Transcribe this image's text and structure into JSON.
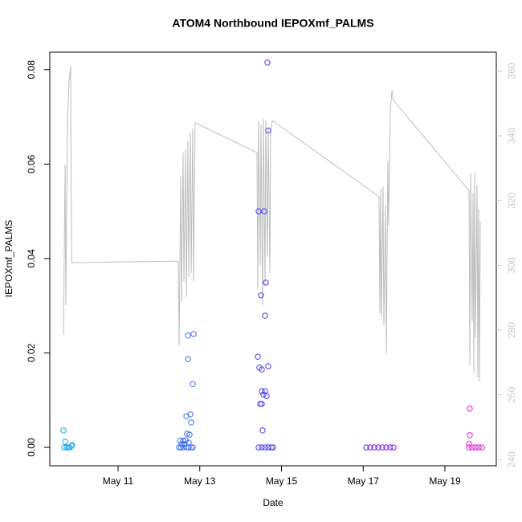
{
  "chart_data": {
    "type": "scatter",
    "title": "ATOM4 Northbound IEPOXmf_PALMS",
    "x_label": "Date",
    "y_label": "IEPOXmf_PALMS",
    "xlim": [
      9.329,
      20.258
    ],
    "xticks": [
      {
        "value": 11,
        "label": "May 11"
      },
      {
        "value": 13,
        "label": "May 13"
      },
      {
        "value": 15,
        "label": "May 15"
      },
      {
        "value": 17,
        "label": "May 17"
      },
      {
        "value": 19,
        "label": "May 19"
      }
    ],
    "ylim": [
      -0.0039,
      0.0837
    ],
    "yticks": [
      {
        "value": 0,
        "label": "0.00"
      },
      {
        "value": 0.02,
        "label": "0.02"
      },
      {
        "value": 0.04,
        "label": "0.04"
      },
      {
        "value": 0.06,
        "label": "0.06"
      },
      {
        "value": 0.08,
        "label": "0.08"
      }
    ],
    "y2lim": [
      238.1,
      365.8
    ],
    "y2ticks": [
      240,
      260,
      280,
      300,
      320,
      340,
      360
    ],
    "y2tick_color": "#c8c8c8",
    "series": [
      {
        "type": "line",
        "axis": "y2",
        "color": "#bebebe",
        "x": [
          9.664,
          9.704,
          9.722,
          9.762,
          9.802,
          9.84,
          9.86,
          12.474,
          12.494,
          12.534,
          12.554,
          12.592,
          12.612,
          12.652,
          12.672,
          12.71,
          12.73,
          12.77,
          12.79,
          12.828,
          12.848,
          12.886,
          14.4,
          14.42,
          14.44,
          14.48,
          14.498,
          14.538,
          14.558,
          14.598,
          14.616,
          14.656,
          14.676,
          14.716,
          14.734,
          14.774,
          17.388,
          17.408,
          17.428,
          17.448,
          17.486,
          17.506,
          17.546,
          17.566,
          17.604,
          17.624,
          17.664,
          17.704,
          17.742,
          19.59,
          19.61,
          19.63,
          19.668,
          19.688,
          19.708,
          19.728,
          19.748,
          19.786,
          19.806,
          19.826,
          19.846,
          19.866
        ],
        "values": [
          278.5,
          331.1,
          287.7,
          344.7,
          357.1,
          361.6,
          300.8,
          301.3,
          275.3,
          327.4,
          288.9,
          334.8,
          295.1,
          336.0,
          290.2,
          338.5,
          296.4,
          341.0,
          297.6,
          342.2,
          295.1,
          344.0,
          334.8,
          292.7,
          344.7,
          300.1,
          343.5,
          287.7,
          345.2,
          293.9,
          344.7,
          302.6,
          342.2,
          297.6,
          341.0,
          344.7,
          321.2,
          285.2,
          323.7,
          284.0,
          324.4,
          281.5,
          318.7,
          272.8,
          332.3,
          312.5,
          348.4,
          353.9,
          350.9,
          323.1,
          269.1,
          328.6,
          282.8,
          322.4,
          266.6,
          328.6,
          277.8,
          324.9,
          265.4,
          317.4,
          264.2,
          313.7
        ]
      },
      {
        "color": "#1aa6ec",
        "x": [
          9.664,
          9.704,
          9.684,
          9.742,
          9.782,
          9.82,
          9.86,
          9.88
        ],
        "values": [
          0.0036,
          0.0012,
          0,
          0,
          0,
          0,
          0.0003,
          0.0005
        ]
      },
      {
        "color": "#3d6ff2",
        "x": [
          12.71,
          12.848,
          12.71,
          12.828,
          12.672,
          12.77,
          12.79,
          12.69,
          12.75,
          12.514,
          12.592,
          12.652,
          12.73,
          12.554,
          12.632,
          12.494,
          12.534,
          12.592,
          12.672,
          12.73,
          12.79,
          12.828
        ],
        "values": [
          0.0237,
          0.024,
          0.0187,
          0.0134,
          0.0066,
          0.007,
          0.0053,
          0.0029,
          0.0027,
          0.0014,
          0.0014,
          0.0015,
          0.001,
          0.0007,
          0.0007,
          0,
          0,
          0,
          0,
          0,
          0,
          0
        ]
      },
      {
        "color": "#4a3cf4",
        "x": [
          14.656,
          14.676,
          14.44,
          14.578,
          14.616,
          14.498,
          14.598,
          14.42,
          14.46,
          14.676,
          14.518,
          14.518,
          14.598,
          14.558,
          14.636,
          14.48,
          14.518,
          14.538,
          14.44,
          14.518,
          14.598,
          14.676,
          14.754,
          14.794
        ],
        "values": [
          0.0815,
          0.0671,
          0.05,
          0.05,
          0.0349,
          0.0322,
          0.0279,
          0.0192,
          0.0169,
          0.0172,
          0.0165,
          0.0119,
          0.0119,
          0.0112,
          0.0109,
          0.0092,
          0.0092,
          0.0036,
          0,
          0,
          0,
          0,
          0,
          0
        ]
      },
      {
        "color": "#7b1ff2",
        "x": [
          17.074,
          17.172,
          17.27,
          17.369,
          17.467,
          17.565,
          17.663,
          17.742
        ],
        "values": [
          0,
          0,
          0,
          0,
          0,
          0,
          0,
          0
        ]
      },
      {
        "color": "#e21fd0",
        "x": [
          19.609,
          19.609,
          19.59,
          19.59,
          19.668,
          19.747,
          19.826,
          19.904
        ],
        "values": [
          0.0082,
          0.0026,
          0.0007,
          0,
          0,
          0,
          0,
          0
        ]
      }
    ]
  }
}
